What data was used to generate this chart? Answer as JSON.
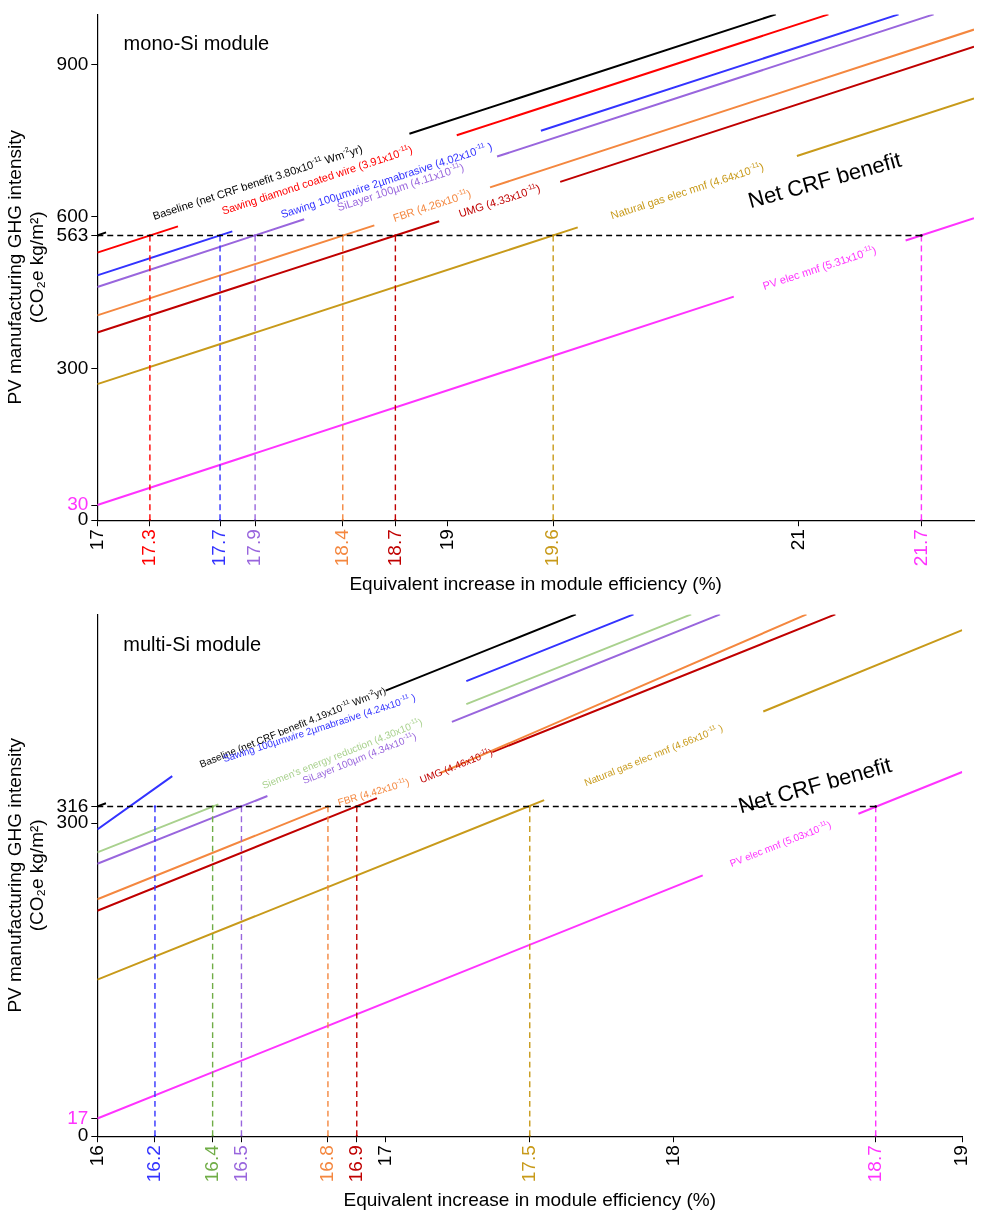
{
  "chart_data": [
    {
      "type": "line",
      "xlabel": "Equivalent increase in module efficiency (%)",
      "ylabel": "PV manufacturing GHG intensity\n(CO₂e kg/m²)",
      "xlim": [
        17,
        22
      ],
      "ylim": [
        0,
        1000
      ],
      "xticks": [
        17,
        17.3,
        17.7,
        17.9,
        18.4,
        18.7,
        19,
        19.6,
        21,
        21.7
      ],
      "yticks": [
        0,
        30,
        300,
        563,
        600,
        900
      ],
      "grid": false,
      "legend": false,
      "marker": "none",
      "annotations": [
        "mono-Si module",
        "Net CRF benefit",
        "Baseline (net CRF benefit 3.80x10$^{-11}$ Wm$^{-2}$yr)",
        "Sawing diamond coated wire (3.91x10$^{-11}$)",
        "Sawing 100µmwire 2µmabrasive (4.02x10$^{-11}$ )",
        "SiLayer 100µm (4.11x10$^{-11}$)",
        "FBR (4.26x10$^{-11}$)",
        "UMG (4.33x10$^{-11}$)",
        "Natural gas elec mnf (4.64x10$^{-11}$)",
        "PV elec mnf (5.31x10$^{-11}$)"
      ],
      "series": [
        {
          "color": "#000000",
          "x": [
            17,
            17.05,
            17.5,
            18.78,
            20.87
          ],
          "values": [
            563,
            569,
            null,
            764,
            1000
          ]
        },
        {
          "color": "#ff0000",
          "x": [
            17,
            17.46,
            18,
            19.05,
            21.17
          ],
          "values": [
            529,
            581,
            null,
            761,
            1000
          ]
        },
        {
          "color": "#3333ff",
          "x": [
            17,
            17.77,
            18.5,
            19.53,
            21.57
          ],
          "values": [
            484,
            571,
            null,
            770,
            1000
          ]
        },
        {
          "color": "#9966dd",
          "x": [
            17,
            18.18,
            18.7,
            19.28,
            21.77
          ],
          "values": [
            461,
            595,
            null,
            719,
            1000
          ]
        },
        {
          "color": "#f4873f",
          "x": [
            17,
            18.58,
            18.9,
            19.24,
            22
          ],
          "values": [
            405,
            583,
            null,
            658,
            970
          ]
        },
        {
          "color": "#c00000",
          "x": [
            17,
            18.95,
            19.3,
            19.64,
            22
          ],
          "values": [
            371,
            591,
            null,
            669,
            936
          ]
        },
        {
          "color": "#c89a1a",
          "x": [
            17,
            19.74,
            20.3,
            20.99,
            22
          ],
          "values": [
            269,
            579,
            null,
            720,
            834
          ]
        },
        {
          "color": "#ff33ff",
          "x": [
            17,
            20.63,
            21.1,
            21.61,
            22
          ],
          "values": [
            30,
            442,
            null,
            553,
            597
          ]
        },
        {
          "color": "#000000",
          "line_style": "dashed",
          "x": [
            17,
            21.7
          ],
          "values": [
            563,
            563
          ]
        },
        {
          "color": "#ff0000",
          "line_style": "dashed",
          "x": [
            17.3,
            17.3
          ],
          "values": [
            0,
            563
          ]
        },
        {
          "color": "#3333ff",
          "line_style": "dashed",
          "x": [
            17.7,
            17.7
          ],
          "values": [
            0,
            563
          ]
        },
        {
          "color": "#9966dd",
          "line_style": "dashed",
          "x": [
            17.9,
            17.9
          ],
          "values": [
            0,
            563
          ]
        },
        {
          "color": "#f4873f",
          "line_style": "dashed",
          "x": [
            18.4,
            18.4
          ],
          "values": [
            0,
            563
          ]
        },
        {
          "color": "#c00000",
          "line_style": "dashed",
          "x": [
            18.7,
            18.7
          ],
          "values": [
            0,
            563
          ]
        },
        {
          "color": "#c89a1a",
          "line_style": "dashed",
          "x": [
            19.6,
            19.6
          ],
          "values": [
            0,
            563
          ]
        },
        {
          "color": "#ff33ff",
          "line_style": "dashed",
          "x": [
            21.7,
            21.7
          ],
          "values": [
            0,
            563
          ]
        }
      ]
    },
    {
      "type": "line",
      "xlabel": "Equivalent increase in module efficiency (%)",
      "ylabel": "PV manufacturing GHG intensity\n(CO₂e kg/m²)",
      "xlim": [
        16,
        19
      ],
      "ylim": [
        0,
        500
      ],
      "xticks": [
        16,
        16.2,
        16.4,
        16.5,
        16.8,
        16.9,
        17,
        17.5,
        18,
        18.7,
        19
      ],
      "yticks": [
        0,
        17,
        300,
        316
      ],
      "grid": false,
      "legend": false,
      "marker": "none",
      "annotations": [
        "multi-Si module",
        "Net CRF benefit",
        "Baseline (net CRF benefit 4.19x10$^{-11}$ Wm$^{-2}$yr)",
        "Sawing 100µmwire 2µmabrasive (4.24x10$^{-11}$ )",
        "Siemen's energy reduction (4.30x10$^{-11}$)",
        "SiLayer 100µm (4.34x10$^{-11}$)",
        "FBR (4.42x10$^{-11}$)",
        "UMG (4.46x10$^{-11}$)",
        "Natural gas elec mnf (4.66x10$^{-11}$ )",
        "PV elec mnf (5.03x10$^{-11}$)"
      ],
      "series": [
        {
          "color": "#000000",
          "x": [
            16,
            16.03,
            16.5,
            17.0,
            17.66
          ],
          "values": [
            316,
            319,
            null,
            427,
            500
          ]
        },
        {
          "color": "#3333ff",
          "x": [
            16,
            16.26,
            16.8,
            17.28,
            17.86
          ],
          "values": [
            294,
            345,
            null,
            436,
            500
          ]
        },
        {
          "color": "#a9d18e",
          "x": [
            16,
            16.42,
            16.8,
            17.28,
            18.06
          ],
          "values": [
            272,
            318,
            null,
            414,
            500
          ]
        },
        {
          "color": "#9966dd",
          "x": [
            16,
            16.59,
            16.9,
            17.23,
            18.16
          ],
          "values": [
            261,
            326,
            null,
            397,
            500
          ]
        },
        {
          "color": "#f4873f",
          "x": [
            16,
            16.8,
            17,
            17.19,
            18.46
          ],
          "values": [
            227,
            316,
            null,
            348,
            500
          ]
        },
        {
          "color": "#c00000",
          "x": [
            16,
            16.97,
            17.2,
            17.37,
            18.56
          ],
          "values": [
            216,
            324,
            null,
            368,
            500
          ]
        },
        {
          "color": "#c89a1a",
          "x": [
            16,
            17.55,
            17.9,
            18.31,
            19
          ],
          "values": [
            150,
            322,
            null,
            407,
            485
          ]
        },
        {
          "color": "#ff33ff",
          "x": [
            16,
            18.1,
            18.4,
            18.64,
            19
          ],
          "values": [
            17,
            250,
            null,
            309,
            349
          ]
        },
        {
          "color": "#000000",
          "line_style": "dashed",
          "x": [
            16,
            18.7
          ],
          "values": [
            316,
            316
          ]
        },
        {
          "color": "#3333ff",
          "line_style": "dashed",
          "x": [
            16.2,
            16.2
          ],
          "values": [
            0,
            316
          ]
        },
        {
          "color": "#70ad47",
          "line_style": "dashed",
          "x": [
            16.4,
            16.4
          ],
          "values": [
            0,
            316
          ]
        },
        {
          "color": "#9966dd",
          "line_style": "dashed",
          "x": [
            16.5,
            16.5
          ],
          "values": [
            0,
            316
          ]
        },
        {
          "color": "#f4873f",
          "line_style": "dashed",
          "x": [
            16.8,
            16.8
          ],
          "values": [
            0,
            316
          ]
        },
        {
          "color": "#c00000",
          "line_style": "dashed",
          "x": [
            16.9,
            16.9
          ],
          "values": [
            0,
            316
          ]
        },
        {
          "color": "#c89a1a",
          "line_style": "dashed",
          "x": [
            17.5,
            17.5
          ],
          "values": [
            0,
            316
          ]
        },
        {
          "color": "#ff33ff",
          "line_style": "dashed",
          "x": [
            18.7,
            18.7
          ],
          "values": [
            0,
            316
          ]
        }
      ]
    }
  ]
}
